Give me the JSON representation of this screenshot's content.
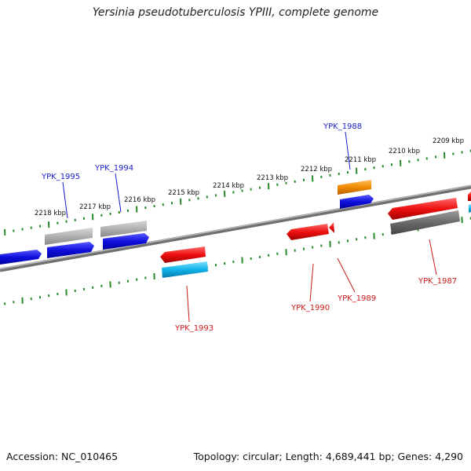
{
  "title": "Yersinia pseudotuberculosis YPIII, complete genome",
  "footer": {
    "accession": "Accession: NC_010465",
    "topology": "Topology: circular; Length: 4,689,441 bp; Genes: 4,290"
  },
  "kbp_labels": [
    "2209 kbp",
    "2210 kbp",
    "2211 kbp",
    "2212 kbp",
    "2213 kbp",
    "2214 kbp",
    "2215 kbp",
    "2216 kbp",
    "2217 kbp",
    "2218 kbp"
  ],
  "gene_labels": [
    {
      "text": "YPK_1995",
      "strand": "forward"
    },
    {
      "text": "YPK_1994",
      "strand": "forward"
    },
    {
      "text": "YPK_1988",
      "strand": "forward"
    },
    {
      "text": "YPK_1993",
      "strand": "reverse"
    },
    {
      "text": "YPK_1990",
      "strand": "reverse"
    },
    {
      "text": "YPK_1989",
      "strand": "reverse"
    },
    {
      "text": "YPK_1987",
      "strand": "reverse"
    }
  ],
  "colors": {
    "forward_label": "#1a1acc",
    "reverse_label": "#cc1a1a",
    "tick": "#2a8a2a",
    "backbone": "#808080",
    "blue": "#1010dd",
    "red": "#ee1010",
    "gray": "#b0b0b0",
    "darkgray": "#6a6a6a",
    "orange": "#f08a00",
    "cyan": "#10b4e8"
  }
}
